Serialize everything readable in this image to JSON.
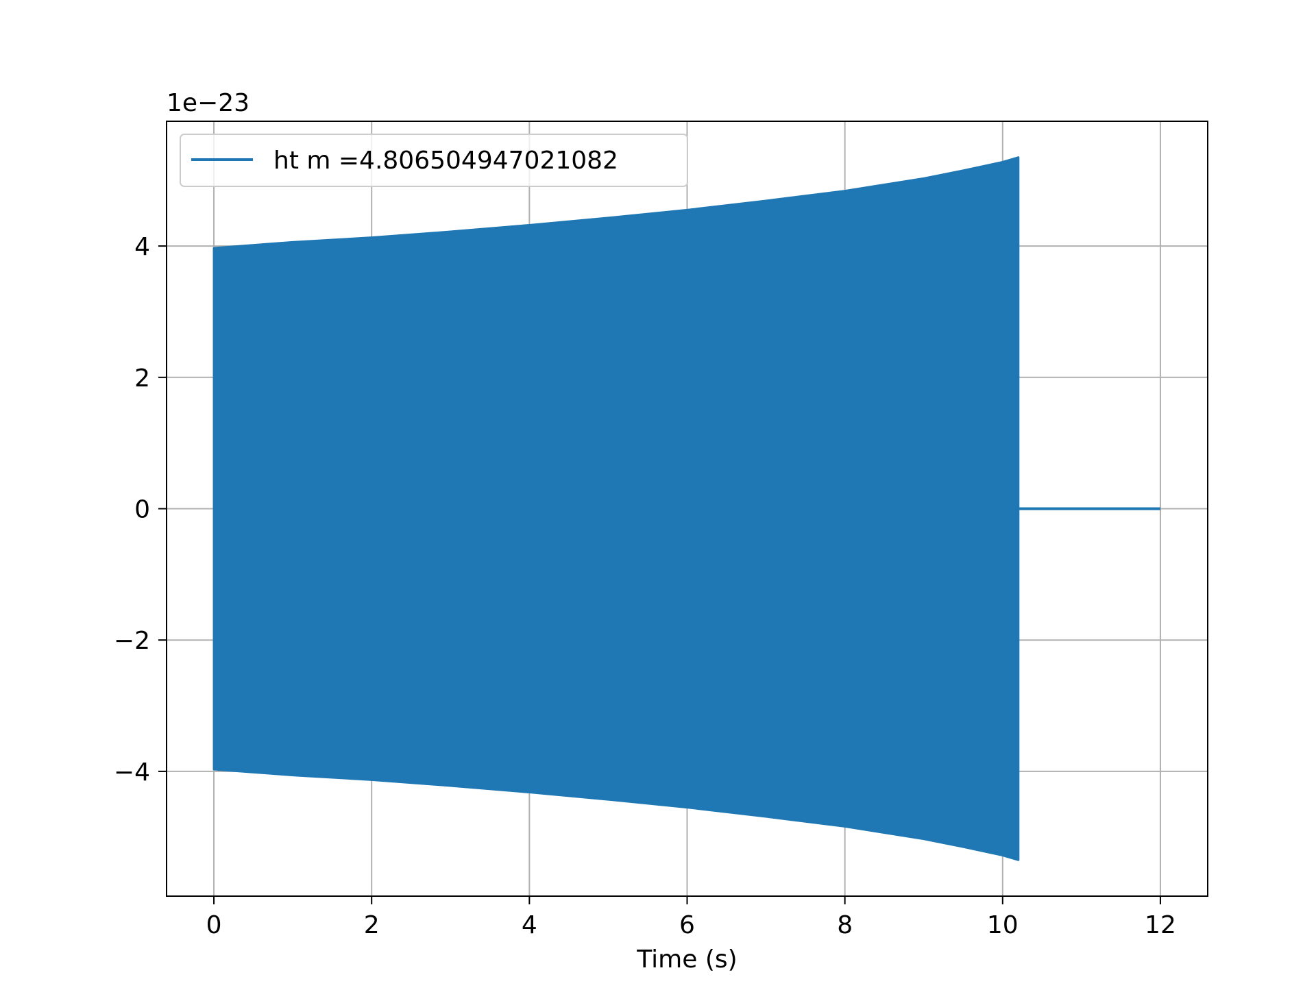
{
  "chart_data": {
    "type": "line",
    "title": "",
    "xlabel": "Time (s)",
    "ylabel": "",
    "y_offset_label": "1e−23",
    "y_scale_exponent": -23,
    "xlim": [
      -0.6,
      12.6
    ],
    "ylim": [
      -5.9,
      5.9
    ],
    "x_ticks": [
      0,
      2,
      4,
      6,
      8,
      10,
      12
    ],
    "y_ticks": [
      -4,
      -2,
      0,
      2,
      4
    ],
    "x_tick_labels": [
      "0",
      "2",
      "4",
      "6",
      "8",
      "10",
      "12"
    ],
    "y_tick_labels": [
      "−4",
      "−2",
      "0",
      "2",
      "4"
    ],
    "grid": true,
    "legend_position": "upper-left",
    "colors": {
      "series": "#1f77b4",
      "grid": "#b0b0b0",
      "axes": "#000000"
    },
    "series": [
      {
        "name": "ht m =4.806504947021082",
        "note_render": "dense oscillation — drawn as filled amplitude envelope",
        "t_start": 0.0,
        "t_merge": 10.2,
        "t_end": 12.0,
        "envelope_t": [
          0,
          1,
          2,
          3,
          4,
          5,
          6,
          7,
          8,
          9,
          9.5,
          10,
          10.2
        ],
        "envelope_upper": [
          3.97,
          4.06,
          4.13,
          4.22,
          4.32,
          4.43,
          4.55,
          4.69,
          4.84,
          5.03,
          5.15,
          5.28,
          5.35
        ],
        "envelope_lower": [
          -3.97,
          -4.06,
          -4.13,
          -4.22,
          -4.32,
          -4.43,
          -4.55,
          -4.69,
          -4.84,
          -5.03,
          -5.15,
          -5.28,
          -5.35
        ],
        "after_merge_value": 0
      }
    ]
  }
}
